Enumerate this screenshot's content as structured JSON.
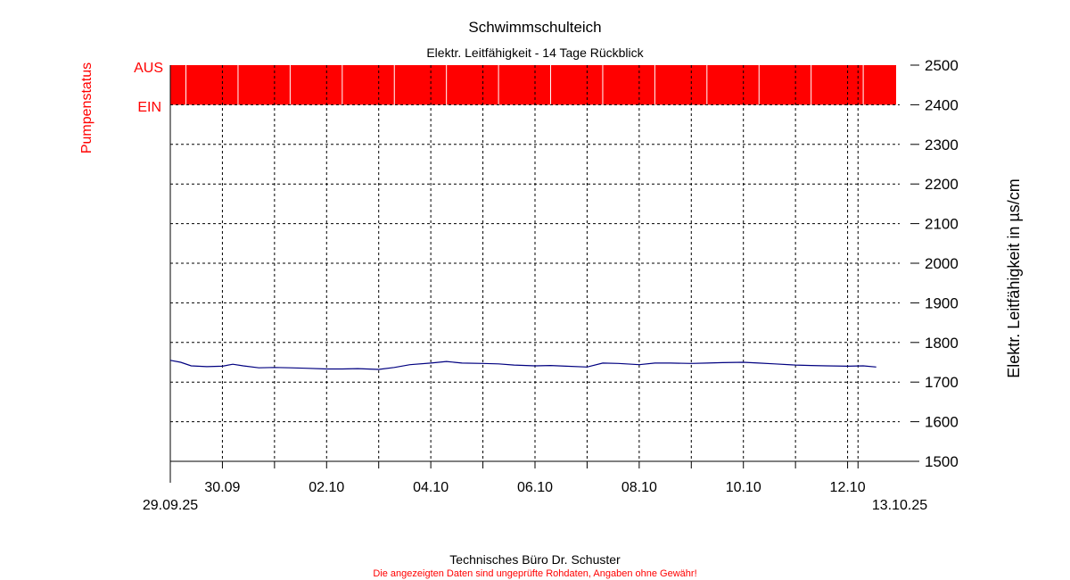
{
  "chart_data": {
    "type": "line",
    "title": "Schwimmschulteich",
    "subtitle": "Elektr. Leitfähigkeit - 14 Tage Rückblick",
    "ylabel": "Elektr. Leitfähigkeit in µs/cm",
    "ylabel_left": "Pumpenstatus",
    "status_labels": {
      "off": "AUS",
      "on": "EIN"
    },
    "ylim": [
      1500,
      2500
    ],
    "y_ticks": [
      1500,
      1600,
      1700,
      1800,
      1900,
      2000,
      2100,
      2200,
      2300,
      2400,
      2500
    ],
    "xlim": [
      0,
      14
    ],
    "x_start_label": "29.09.25",
    "x_end_label": "13.10.25",
    "x_ticks": [
      {
        "x": 1,
        "label": "30.09"
      },
      {
        "x": 2,
        "label": ""
      },
      {
        "x": 3,
        "label": "02.10"
      },
      {
        "x": 4,
        "label": ""
      },
      {
        "x": 5,
        "label": "04.10"
      },
      {
        "x": 6,
        "label": ""
      },
      {
        "x": 7,
        "label": "06.10"
      },
      {
        "x": 8,
        "label": ""
      },
      {
        "x": 9,
        "label": "08.10"
      },
      {
        "x": 10,
        "label": ""
      },
      {
        "x": 11,
        "label": "10.10"
      },
      {
        "x": 12,
        "label": ""
      },
      {
        "x": 13,
        "label": "12.10"
      },
      {
        "x": 13.2,
        "label": ""
      }
    ],
    "grid": true,
    "pump_status": {
      "color": "#ff0000",
      "gap_positions_days": [
        0.3,
        1.3,
        2.3,
        3.3,
        4.3,
        5.3,
        6.3,
        7.3,
        8.3,
        9.3,
        10.3,
        11.3,
        12.3,
        13.3
      ]
    },
    "series": [
      {
        "color": "#000080",
        "x": [
          0,
          0.2,
          0.4,
          0.7,
          1.0,
          1.2,
          1.4,
          1.7,
          2.0,
          2.3,
          2.6,
          3.0,
          3.3,
          3.6,
          4.0,
          4.3,
          4.6,
          5.0,
          5.3,
          5.6,
          6.0,
          6.3,
          6.6,
          7.0,
          7.3,
          7.6,
          8.0,
          8.3,
          8.6,
          9.0,
          9.3,
          9.6,
          10.0,
          10.3,
          10.6,
          11.0,
          11.3,
          11.6,
          12.0,
          12.3,
          12.6,
          13.0,
          13.3,
          13.55
        ],
        "y": [
          1755,
          1750,
          1741,
          1739,
          1740,
          1745,
          1741,
          1736,
          1737,
          1736,
          1735,
          1733,
          1733,
          1734,
          1732,
          1737,
          1744,
          1748,
          1752,
          1748,
          1747,
          1746,
          1743,
          1741,
          1742,
          1740,
          1738,
          1748,
          1747,
          1744,
          1748,
          1748,
          1747,
          1748,
          1749,
          1750,
          1748,
          1746,
          1743,
          1742,
          1741,
          1740,
          1741,
          1738
        ]
      }
    ]
  },
  "footer": {
    "company": "Technisches Büro Dr. Schuster",
    "disclaimer": "Die angezeigten Daten sind ungeprüfte Rohdaten, Angaben ohne Gewähr!"
  },
  "colors": {
    "status": "#ff0000",
    "line": "#000080",
    "axis": "#000000"
  }
}
